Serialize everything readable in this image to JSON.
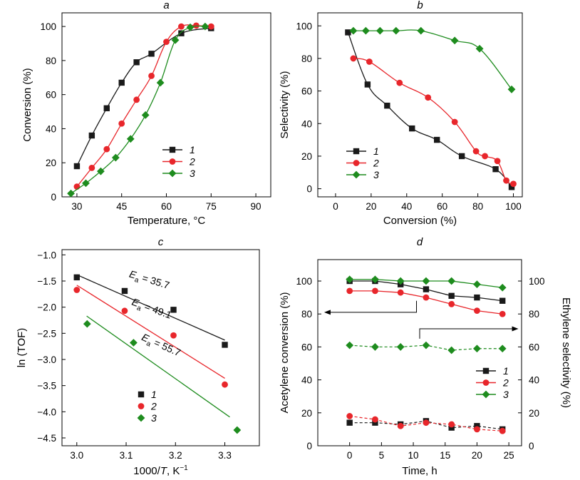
{
  "chart_data": [
    {
      "panel": "a",
      "type": "line",
      "xlabel": "Temperature, °C",
      "ylabel": "Conversion (%)",
      "xlim": [
        25,
        95
      ],
      "ylim": [
        0,
        108
      ],
      "xticks": [
        30,
        45,
        60,
        75,
        90
      ],
      "yticks": [
        0,
        20,
        40,
        60,
        80,
        100
      ],
      "legend_position": "center-right",
      "series": [
        {
          "name": "1",
          "color": "#1a1a1a",
          "marker": "square",
          "x": [
            30,
            35,
            40,
            45,
            50,
            55,
            65,
            75
          ],
          "y": [
            18,
            36,
            52,
            67,
            79,
            84,
            96,
            99
          ]
        },
        {
          "name": "2",
          "color": "#e8262b",
          "marker": "circle",
          "x": [
            30,
            35,
            40,
            45,
            50,
            55,
            60,
            65,
            70,
            75
          ],
          "y": [
            6,
            17,
            28,
            43,
            57,
            71,
            91,
            100,
            100.5,
            100
          ]
        },
        {
          "name": "3",
          "color": "#1e8c1e",
          "marker": "diamond",
          "x": [
            28,
            33,
            38,
            43,
            48,
            53,
            58,
            63,
            68,
            73
          ],
          "y": [
            2,
            8,
            15,
            23,
            34,
            48,
            67,
            92,
            99.5,
            100
          ]
        }
      ]
    },
    {
      "panel": "b",
      "type": "line",
      "xlabel": "Conversion (%)",
      "ylabel": "Selectivity (%)",
      "xlim": [
        -10,
        105
      ],
      "ylim": [
        -5,
        108
      ],
      "xticks": [
        0,
        20,
        40,
        60,
        80,
        100
      ],
      "yticks": [
        0,
        20,
        40,
        60,
        80,
        100
      ],
      "legend_position": "bottom-left",
      "series": [
        {
          "name": "1",
          "color": "#1a1a1a",
          "marker": "square",
          "x": [
            7,
            18,
            29,
            43,
            57,
            71,
            90,
            99
          ],
          "y": [
            96,
            64,
            51,
            37,
            30,
            20,
            12,
            1
          ]
        },
        {
          "name": "2",
          "color": "#e8262b",
          "marker": "circle",
          "x": [
            10,
            19,
            36,
            52,
            67,
            79,
            84,
            91,
            96,
            100
          ],
          "y": [
            80,
            78,
            65,
            56,
            41,
            23,
            20,
            17,
            5,
            3
          ]
        },
        {
          "name": "3",
          "color": "#1e8c1e",
          "marker": "diamond",
          "x": [
            10,
            17,
            25,
            34,
            48,
            67,
            81,
            99
          ],
          "y": [
            97,
            97,
            97,
            97,
            97,
            91,
            86,
            61
          ]
        }
      ]
    },
    {
      "panel": "c",
      "type": "scatter",
      "xlabel_base": "1000/",
      "xlabel_var": "T",
      "xlabel_unit": ", K",
      "xlabel_sup": "−1",
      "ylabel": "ln (TOF)",
      "xlim": [
        2.97,
        3.37
      ],
      "ylim": [
        -4.65,
        -0.9
      ],
      "xticks": [
        3.0,
        3.1,
        3.2,
        3.3
      ],
      "xtick_labels": [
        "3.0",
        "3.1",
        "3.2",
        "3.3"
      ],
      "yticks": [
        -1.0,
        -1.5,
        -2.0,
        -2.5,
        -3.0,
        -3.5,
        -4.0,
        -4.5
      ],
      "ytick_labels": [
        "−1.0",
        "−1.5",
        "−2.0",
        "−2.5",
        "−3.0",
        "−3.5",
        "−4.0",
        "−4.5"
      ],
      "legend_position": "bottom-center",
      "series": [
        {
          "name": "1",
          "color": "#1a1a1a",
          "marker": "square",
          "x": [
            3.0,
            3.097,
            3.196,
            3.3
          ],
          "y": [
            -1.43,
            -1.69,
            -2.05,
            -2.72
          ],
          "fit": {
            "x": [
              3.0,
              3.3
            ],
            "y": [
              -1.38,
              -2.63
            ]
          }
        },
        {
          "name": "2",
          "color": "#e8262b",
          "marker": "circle",
          "x": [
            3.0,
            3.097,
            3.196,
            3.3
          ],
          "y": [
            -1.67,
            -2.07,
            -2.54,
            -3.48
          ],
          "fit": {
            "x": [
              3.0,
              3.3
            ],
            "y": [
              -1.58,
              -3.36
            ]
          }
        },
        {
          "name": "3",
          "color": "#1e8c1e",
          "marker": "diamond",
          "x": [
            3.021,
            3.115,
            3.325
          ],
          "y": [
            -2.32,
            -2.68,
            -4.35
          ],
          "fit": {
            "x": [
              3.02,
              3.31
            ],
            "y": [
              -2.17,
              -4.1
            ]
          }
        }
      ],
      "annotations": [
        {
          "prefix": "E",
          "sub": "a",
          "value": " = 35.7",
          "x": 3.105,
          "y": -1.42,
          "angle": 17
        },
        {
          "prefix": "E",
          "sub": "a",
          "value": " = 49.1",
          "x": 3.11,
          "y": -1.95,
          "angle": 20
        },
        {
          "prefix": "E",
          "sub": "a",
          "value": " = 55.7",
          "x": 3.13,
          "y": -2.62,
          "angle": 24
        }
      ]
    },
    {
      "panel": "d",
      "type": "line",
      "xlabel": "Time, h",
      "ylabel": "Acetylene conversion (%)",
      "ylabel_right": "Ethylene selectivity (%)",
      "xlim": [
        -5,
        27
      ],
      "ylim": [
        0,
        113
      ],
      "xticks": [
        0,
        5,
        10,
        15,
        20,
        25
      ],
      "yticks": [
        0,
        20,
        40,
        60,
        80,
        100
      ],
      "legend_position": "center-right",
      "series": [
        {
          "name": "1",
          "color": "#1a1a1a",
          "marker": "square",
          "x": [
            0,
            4,
            8,
            12,
            16,
            20,
            24
          ],
          "y": [
            100,
            100,
            98,
            95,
            91,
            90,
            88
          ],
          "sel": [
            14,
            14,
            13,
            15,
            11,
            12,
            10
          ]
        },
        {
          "name": "2",
          "color": "#e8262b",
          "marker": "circle",
          "x": [
            0,
            4,
            8,
            12,
            16,
            20,
            24
          ],
          "y": [
            94,
            94,
            93,
            90,
            86,
            82,
            80
          ],
          "sel": [
            18,
            16,
            12,
            14,
            13,
            10,
            9
          ]
        },
        {
          "name": "3",
          "color": "#1e8c1e",
          "marker": "diamond",
          "x": [
            0,
            4,
            8,
            12,
            16,
            20,
            24
          ],
          "y": [
            101,
            101,
            100,
            100,
            100,
            98,
            96
          ],
          "sel": [
            61,
            60,
            60,
            61,
            58,
            59,
            59
          ]
        }
      ],
      "arrows": [
        {
          "direction": "left",
          "from_x": 10.5,
          "from_y": 88,
          "to_x": -4,
          "to_y": 81
        },
        {
          "direction": "right",
          "from_x": 11,
          "from_y": 65,
          "to_x": 26.5,
          "to_y": 71
        }
      ]
    }
  ]
}
